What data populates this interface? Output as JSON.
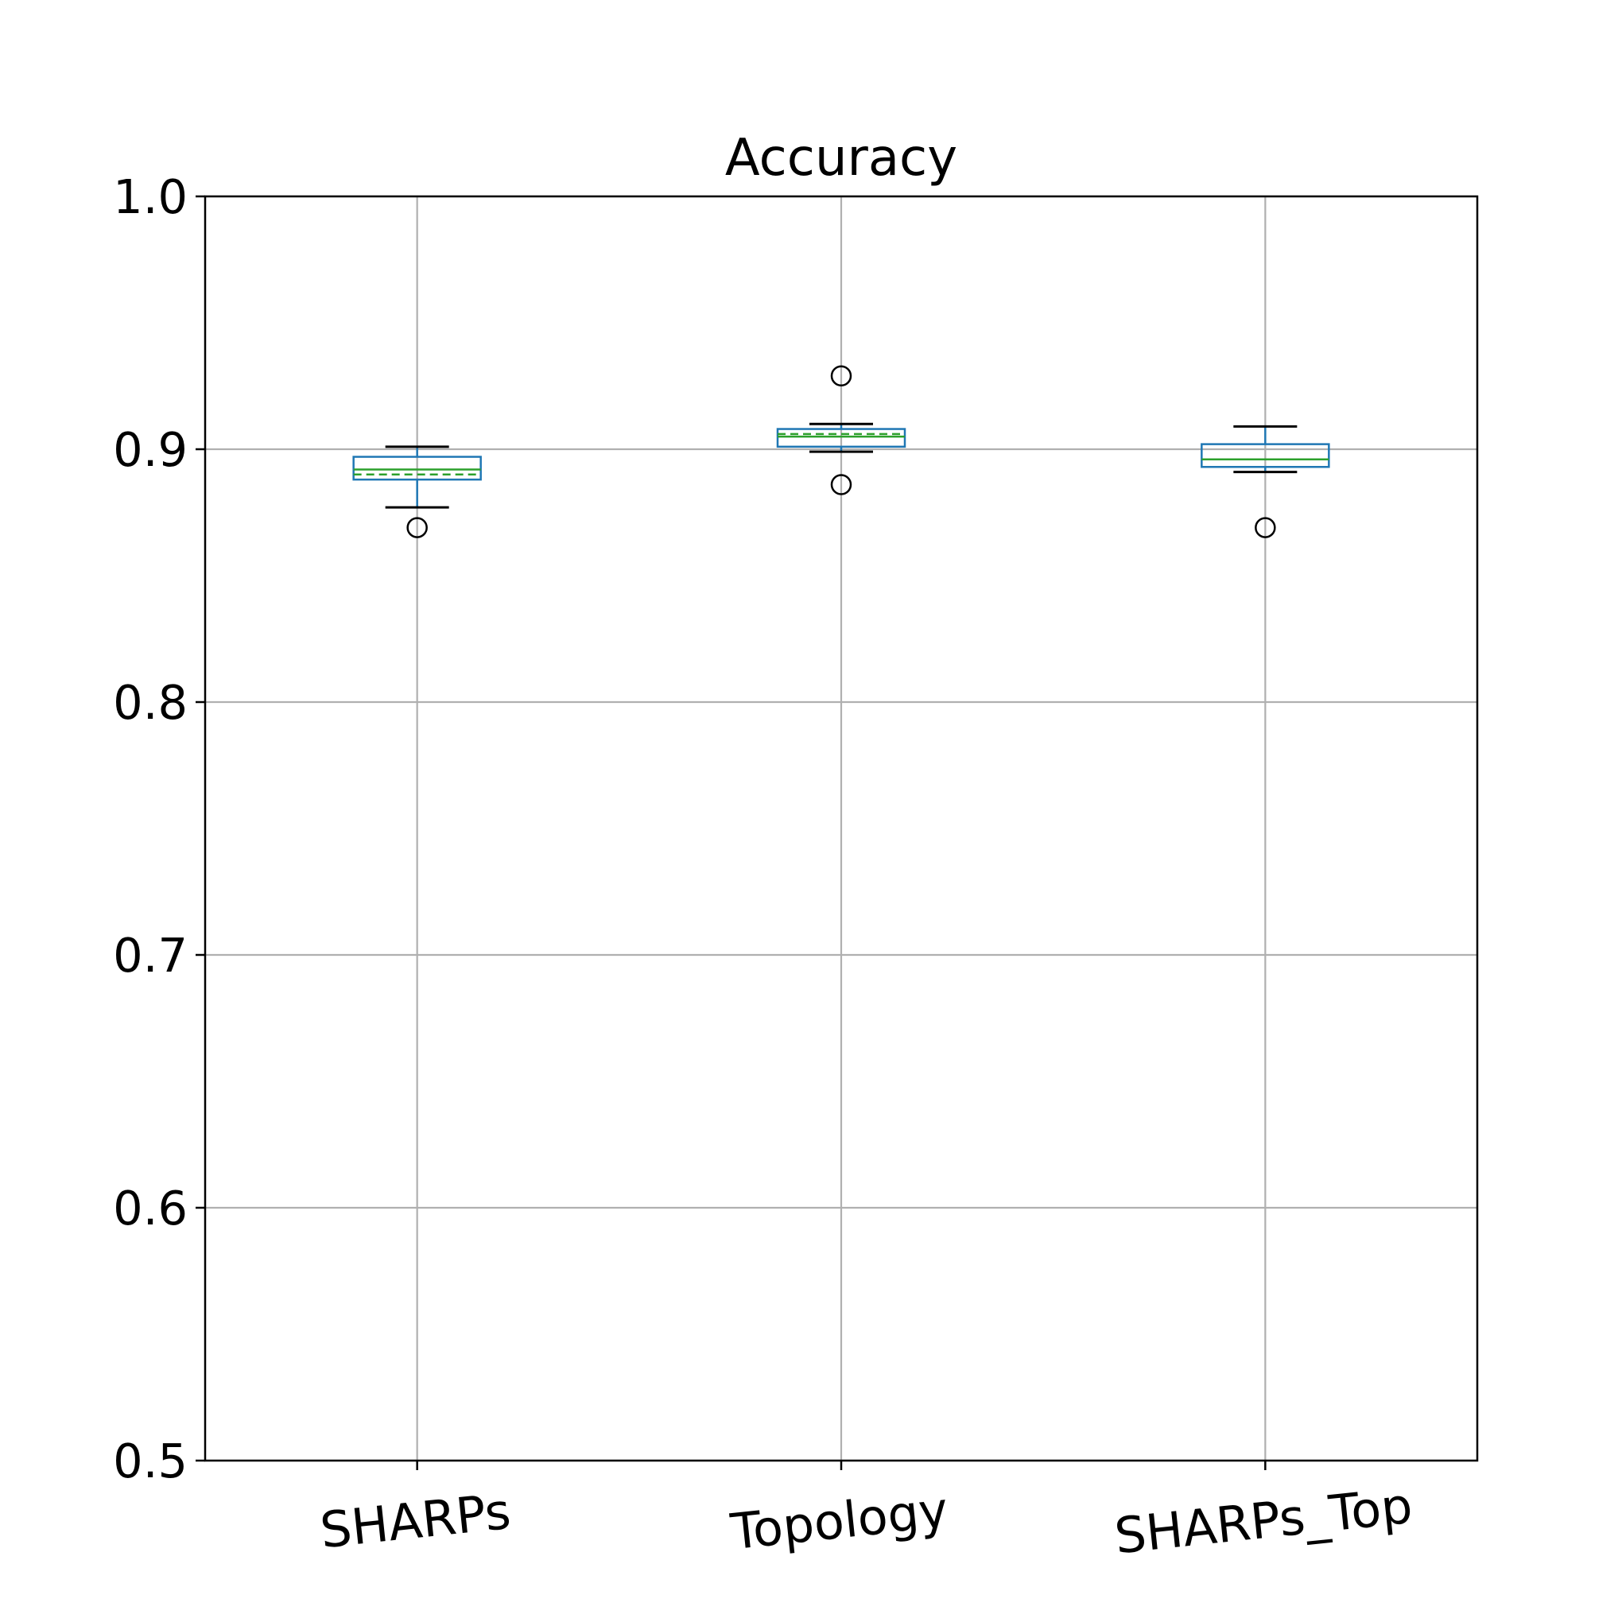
{
  "chart_data": {
    "type": "box",
    "title": "Accuracy",
    "xlabel": "",
    "ylabel": "",
    "ylim": [
      0.5,
      1.0
    ],
    "yticks": [
      "0.5",
      "0.6",
      "0.7",
      "0.8",
      "0.9",
      "1.0"
    ],
    "grid": true,
    "categories": [
      "SHARPs",
      "Topology",
      "SHARPs_Top"
    ],
    "boxes": [
      {
        "whisker_low": 0.877,
        "q1": 0.888,
        "median": 0.892,
        "mean": 0.89,
        "q3": 0.897,
        "whisker_high": 0.901,
        "outliers": [
          0.869
        ]
      },
      {
        "whisker_low": 0.899,
        "q1": 0.901,
        "median": 0.905,
        "mean": 0.906,
        "q3": 0.908,
        "whisker_high": 0.91,
        "outliers": [
          0.929,
          0.886
        ]
      },
      {
        "whisker_low": 0.891,
        "q1": 0.893,
        "median": 0.896,
        "mean": 0.896,
        "q3": 0.902,
        "whisker_high": 0.909,
        "outliers": [
          0.869
        ]
      }
    ],
    "colors": {
      "box": "#1f77b4",
      "median": "#2ca02c",
      "mean": "#2ca02c",
      "whisker_cap": "#000000",
      "outlier": "#000000",
      "grid": "#b0b0b0",
      "axis": "#000000"
    }
  }
}
